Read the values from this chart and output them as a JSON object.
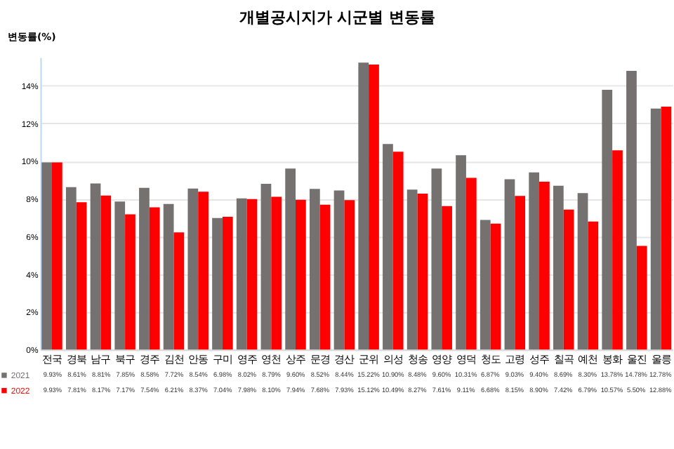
{
  "chart_data": {
    "type": "bar",
    "title": "개별공시지가 시군별 변동률",
    "ylabel": "변동률(%)",
    "categories": [
      "전국",
      "경북",
      "남구",
      "북구",
      "경주",
      "김천",
      "안동",
      "구미",
      "영주",
      "영천",
      "상주",
      "문경",
      "경산",
      "군위",
      "의성",
      "청송",
      "영양",
      "영덕",
      "청도",
      "고령",
      "성주",
      "칠곡",
      "예천",
      "봉화",
      "울진",
      "울릉"
    ],
    "series": [
      {
        "name": "2021",
        "color": "#767171",
        "values": [
          9.93,
          8.61,
          8.81,
          7.85,
          8.58,
          7.72,
          8.54,
          6.98,
          8.02,
          8.79,
          9.6,
          8.52,
          8.44,
          15.22,
          10.9,
          8.48,
          9.6,
          10.31,
          6.87,
          9.03,
          9.4,
          8.69,
          8.3,
          13.78,
          14.78,
          12.78
        ],
        "value_labels": [
          "9.93%",
          "8.61%",
          "8.81%",
          "7.85%",
          "8.58%",
          "7.72%",
          "8.54%",
          "6.98%",
          "8.02%",
          "8.79%",
          "9.60%",
          "8.52%",
          "8.44%",
          "15.22%",
          "10.90%",
          "8.48%",
          "9.60%",
          "10.31%",
          "6.87%",
          "9.03%",
          "9.40%",
          "8.69%",
          "8.30%",
          "13.78%",
          "14.78%",
          "12.78%"
        ]
      },
      {
        "name": "2022",
        "color": "#ff0000",
        "values": [
          9.93,
          7.81,
          8.17,
          7.17,
          7.54,
          6.21,
          8.37,
          7.04,
          7.98,
          8.1,
          7.94,
          7.68,
          7.93,
          15.12,
          10.49,
          8.27,
          7.61,
          9.11,
          6.68,
          8.15,
          8.9,
          7.42,
          6.79,
          10.57,
          5.5,
          12.88
        ],
        "value_labels": [
          "9.93%",
          "7.81%",
          "8.17%",
          "7.17%",
          "7.54%",
          "6.21%",
          "8.37%",
          "7.04%",
          "7.98%",
          "8.10%",
          "7.94%",
          "7.68%",
          "7.93%",
          "15.12%",
          "10.49%",
          "8.27%",
          "7.61%",
          "9.11%",
          "6.68%",
          "8.15%",
          "8.90%",
          "7.42%",
          "6.79%",
          "10.57%",
          "5.50%",
          "12.88%"
        ]
      }
    ],
    "ylim": [
      0,
      15.5
    ],
    "yticks": [
      {
        "value": 0,
        "label": "0%"
      },
      {
        "value": 2,
        "label": "2%"
      },
      {
        "value": 4,
        "label": "4%"
      },
      {
        "value": 6,
        "label": "6%"
      },
      {
        "value": 8,
        "label": "8%"
      },
      {
        "value": 10,
        "label": "10%"
      },
      {
        "value": 12,
        "label": "12%"
      },
      {
        "value": 14,
        "label": "14%"
      }
    ],
    "grid": "y",
    "legend": "bottom"
  }
}
